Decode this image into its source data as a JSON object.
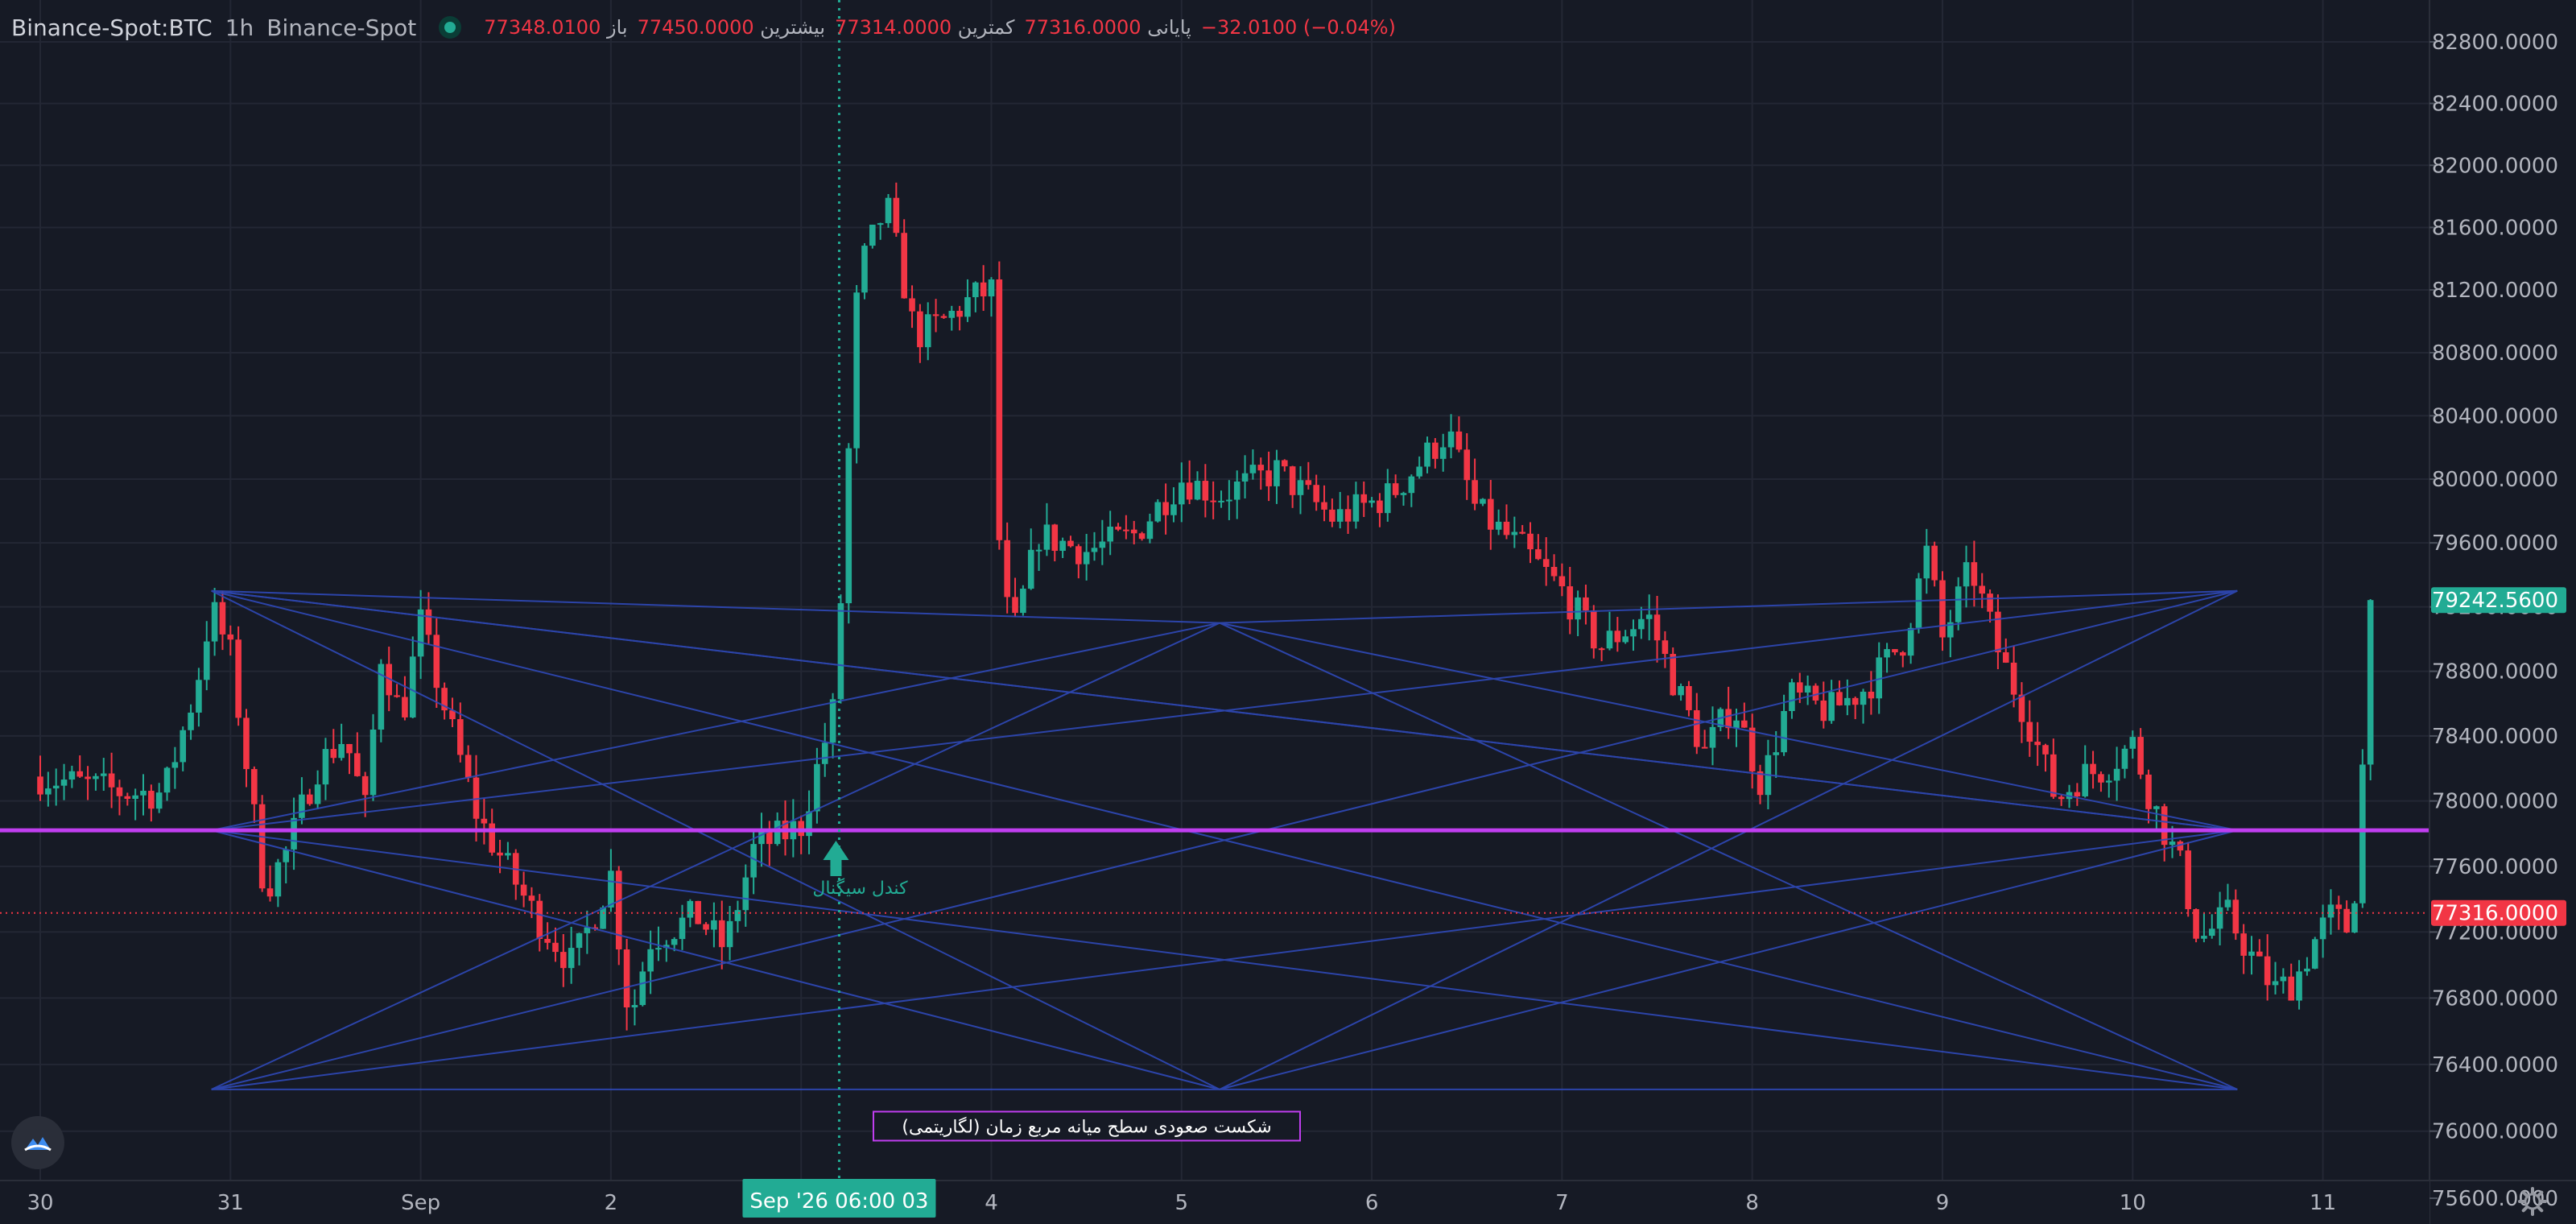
{
  "header": {
    "symbol": "Binance-Spot:BTC",
    "interval": "1h",
    "exchange": "Binance-Spot",
    "ohlc": [
      {
        "label": "باز",
        "value": "77348.0100"
      },
      {
        "label": "بیشترین",
        "value": "77450.0000"
      },
      {
        "label": "کمترین",
        "value": "77314.0000"
      },
      {
        "label": "پایانی",
        "value": "77316.0000"
      }
    ],
    "change": "−32.0100 (−0.04%)"
  },
  "colors": {
    "background": "#161a25",
    "grid": "#232734",
    "up": "#22ab94",
    "down": "#f23645",
    "pattern": "#2f49b8",
    "horizontal_line": "#c03ef0",
    "label_border": "#c03ef0"
  },
  "annotations": {
    "box_label": "شکست صعودی سطح میانه مربع زمان (لگاریتمی)",
    "marker_label": "کندل سیگنال",
    "crosshair_time": "Sep '26  06:00 03"
  },
  "icons": {
    "logo": "logo-icon",
    "settings": "gear-icon"
  },
  "chart_data": {
    "type": "candlestick",
    "title": "",
    "ylim": [
      75400,
      83000
    ],
    "y_scale": "log",
    "y_ticks": [
      "82800.0000",
      "82400.0000",
      "82000.0000",
      "81600.0000",
      "81200.0000",
      "80800.0000",
      "80400.0000",
      "80000.0000",
      "79600.0000",
      "79200.0000",
      "78800.0000",
      "78400.0000",
      "78000.0000",
      "77600.0000",
      "77200.0000",
      "76800.0000",
      "76400.0000",
      "76000.0000",
      "75600.0000"
    ],
    "x_ticks": [
      "30",
      "31",
      "Sep",
      "2",
      "3",
      "4",
      "5",
      "6",
      "7",
      "8",
      "9",
      "10",
      "11"
    ],
    "last_price": 77316.0,
    "last_price_label": "77316.0000",
    "high_price_label": "79242.5600",
    "high_price_value": 79242.56,
    "horizontal_level": 77820,
    "anchors": [
      {
        "x": 0.0,
        "close": 78150
      },
      {
        "x": 0.45,
        "close": 78050
      },
      {
        "x": 0.65,
        "close": 78050
      },
      {
        "x": 0.82,
        "close": 78700
      },
      {
        "x": 0.9,
        "close": 79200
      },
      {
        "x": 1.0,
        "close": 78900
      },
      {
        "x": 1.05,
        "close": 78500
      },
      {
        "x": 1.1,
        "close": 78100
      },
      {
        "x": 1.18,
        "close": 77450
      },
      {
        "x": 1.3,
        "close": 77700
      },
      {
        "x": 1.45,
        "close": 78200
      },
      {
        "x": 1.6,
        "close": 78400
      },
      {
        "x": 1.72,
        "close": 77900
      },
      {
        "x": 1.78,
        "close": 78950
      },
      {
        "x": 1.9,
        "close": 78500
      },
      {
        "x": 2.0,
        "close": 79100
      },
      {
        "x": 2.12,
        "close": 78600
      },
      {
        "x": 2.3,
        "close": 77900
      },
      {
        "x": 2.45,
        "close": 77600
      },
      {
        "x": 2.6,
        "close": 77300
      },
      {
        "x": 2.8,
        "close": 77000
      },
      {
        "x": 3.0,
        "close": 77550
      },
      {
        "x": 3.1,
        "close": 76650
      },
      {
        "x": 3.2,
        "close": 77150
      },
      {
        "x": 3.45,
        "close": 77300
      },
      {
        "x": 3.6,
        "close": 77100
      },
      {
        "x": 3.75,
        "close": 77700
      },
      {
        "x": 4.0,
        "close": 77850
      },
      {
        "x": 4.18,
        "close": 78600
      },
      {
        "x": 4.3,
        "close": 81300
      },
      {
        "x": 4.45,
        "close": 81750
      },
      {
        "x": 4.6,
        "close": 80900
      },
      {
        "x": 4.75,
        "close": 81000
      },
      {
        "x": 4.9,
        "close": 81150
      },
      {
        "x": 5.0,
        "close": 81200
      },
      {
        "x": 5.05,
        "close": 79300
      },
      {
        "x": 5.12,
        "close": 79050
      },
      {
        "x": 5.25,
        "close": 79650
      },
      {
        "x": 5.5,
        "close": 79550
      },
      {
        "x": 5.75,
        "close": 79650
      },
      {
        "x": 6.0,
        "close": 80000
      },
      {
        "x": 6.2,
        "close": 79900
      },
      {
        "x": 6.5,
        "close": 80050
      },
      {
        "x": 6.8,
        "close": 79750
      },
      {
        "x": 7.1,
        "close": 79900
      },
      {
        "x": 7.4,
        "close": 80300
      },
      {
        "x": 7.55,
        "close": 79800
      },
      {
        "x": 7.8,
        "close": 79550
      },
      {
        "x": 8.0,
        "close": 79300
      },
      {
        "x": 8.2,
        "close": 78950
      },
      {
        "x": 8.45,
        "close": 79150
      },
      {
        "x": 8.6,
        "close": 78700
      },
      {
        "x": 8.75,
        "close": 78300
      },
      {
        "x": 8.9,
        "close": 78600
      },
      {
        "x": 9.05,
        "close": 78100
      },
      {
        "x": 9.2,
        "close": 78650
      },
      {
        "x": 9.4,
        "close": 78550
      },
      {
        "x": 9.6,
        "close": 78700
      },
      {
        "x": 9.8,
        "close": 79000
      },
      {
        "x": 9.92,
        "close": 79550
      },
      {
        "x": 10.0,
        "close": 79000
      },
      {
        "x": 10.15,
        "close": 79450
      },
      {
        "x": 10.3,
        "close": 78900
      },
      {
        "x": 10.45,
        "close": 78500
      },
      {
        "x": 10.6,
        "close": 78000
      },
      {
        "x": 10.72,
        "close": 78150
      },
      {
        "x": 10.85,
        "close": 78200
      },
      {
        "x": 11.0,
        "close": 78350
      },
      {
        "x": 11.1,
        "close": 78000
      },
      {
        "x": 11.25,
        "close": 77600
      },
      {
        "x": 11.35,
        "close": 77150
      },
      {
        "x": 11.5,
        "close": 77300
      },
      {
        "x": 11.65,
        "close": 77000
      },
      {
        "x": 11.75,
        "close": 76850
      },
      {
        "x": 11.85,
        "close": 76900
      },
      {
        "x": 11.98,
        "close": 77200
      },
      {
        "x": 12.05,
        "close": 77300
      },
      {
        "x": 12.15,
        "close": 77200
      },
      {
        "x": 12.2,
        "close": 78000
      },
      {
        "x": 12.25,
        "close": 79240
      }
    ]
  }
}
